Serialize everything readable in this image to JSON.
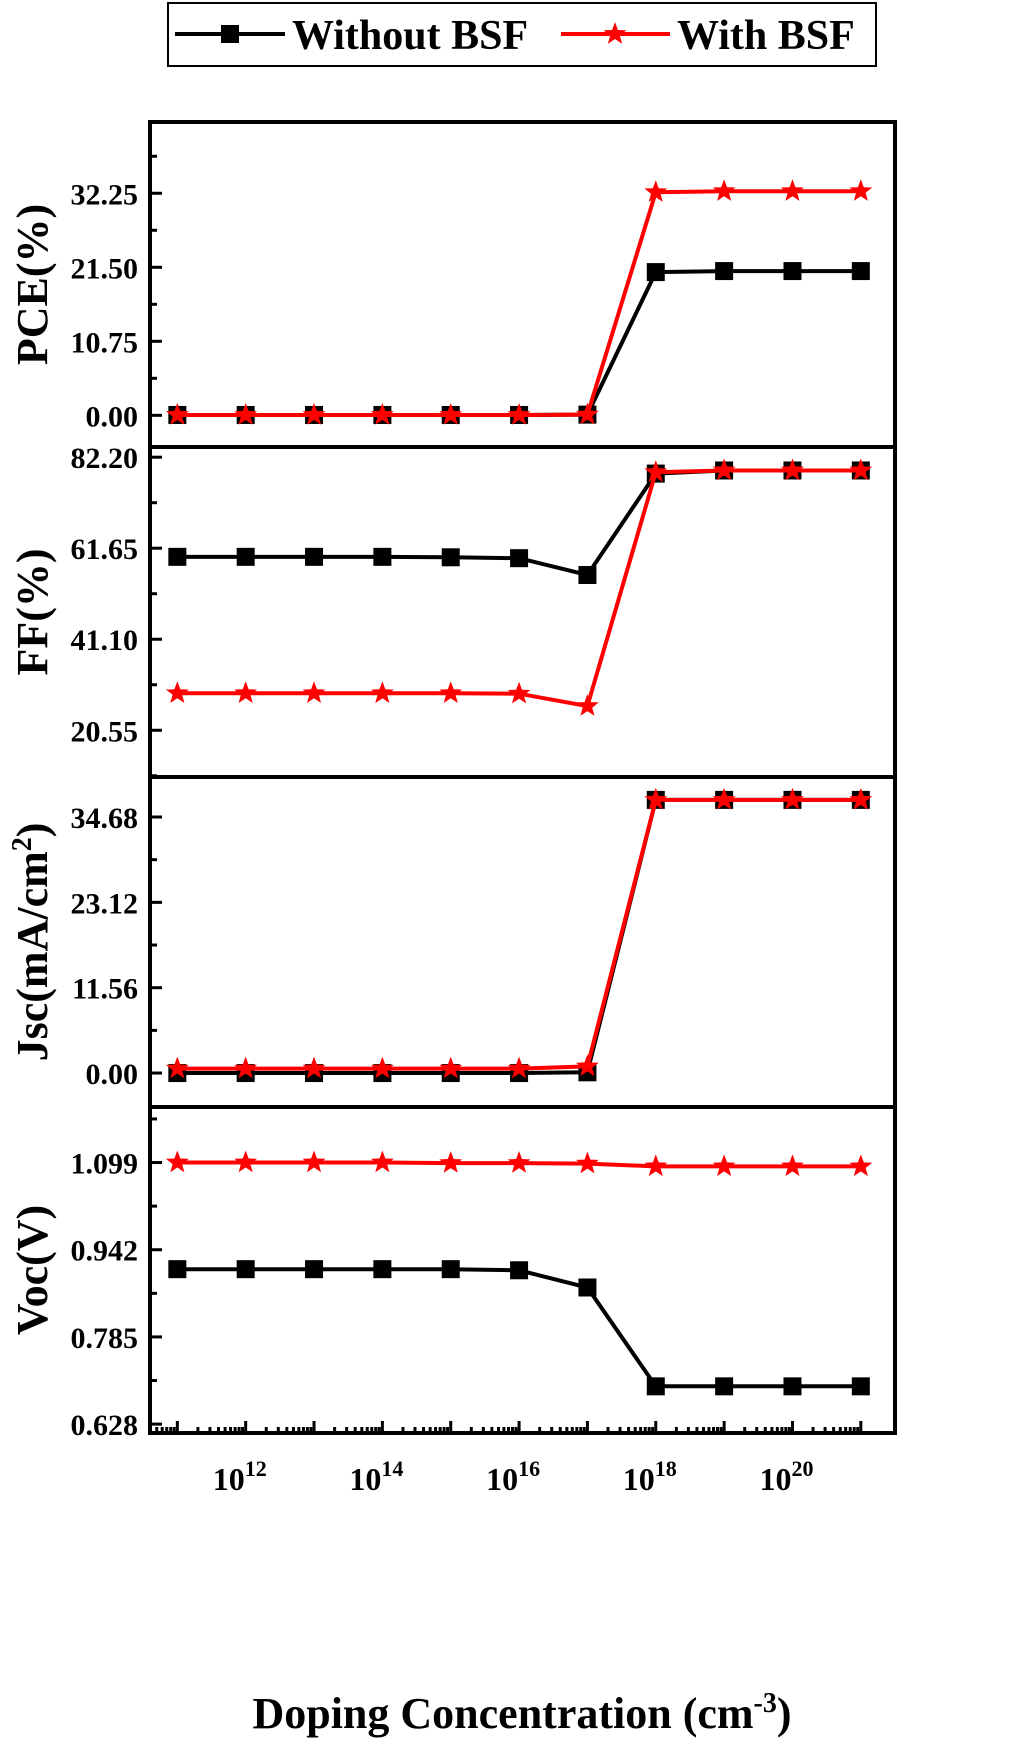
{
  "legend": {
    "entries": [
      {
        "label": "Without BSF",
        "color": "#000000",
        "marker": "square"
      },
      {
        "label": "With BSF",
        "color": "#ff0000",
        "marker": "star"
      }
    ]
  },
  "x_axis": {
    "label": "Doping Concentration (cm",
    "label_sup": "-3",
    "label_close": ")",
    "scale": "log10",
    "tick_labels": [
      {
        "base": "10",
        "exp": "12",
        "value_exp": 12
      },
      {
        "base": "10",
        "exp": "14",
        "value_exp": 14
      },
      {
        "base": "10",
        "exp": "16",
        "value_exp": 16
      },
      {
        "base": "10",
        "exp": "18",
        "value_exp": 18
      },
      {
        "base": "10",
        "exp": "20",
        "value_exp": 20
      }
    ]
  },
  "chart_data": [
    {
      "type": "line",
      "ylabel": "PCE(%)",
      "ylim": [
        -4.6,
        42.6
      ],
      "yticks": [
        "0.00",
        "10.75",
        "21.50",
        "32.25"
      ],
      "x": [
        100000000000.0,
        1000000000000.0,
        10000000000000.0,
        100000000000000.0,
        1000000000000000.0,
        1e+16,
        1e+17,
        1e+18,
        1e+19,
        1e+20,
        1e+21
      ],
      "series": [
        {
          "name": "Without BSF",
          "values": [
            0.05,
            0.05,
            0.05,
            0.05,
            0.05,
            0.05,
            0.1,
            20.8,
            20.95,
            20.95,
            20.95
          ]
        },
        {
          "name": "With BSF",
          "values": [
            0.05,
            0.05,
            0.05,
            0.05,
            0.05,
            0.05,
            0.1,
            32.4,
            32.55,
            32.55,
            32.55
          ]
        }
      ]
    },
    {
      "type": "line",
      "ylabel": "FF(%)",
      "ylim": [
        10.0,
        84.5
      ],
      "yticks": [
        "20.55",
        "41.10",
        "61.65",
        "82.20"
      ],
      "x": [
        100000000000.0,
        1000000000000.0,
        10000000000000.0,
        100000000000000.0,
        1000000000000000.0,
        1e+16,
        1e+17,
        1e+18,
        1e+19,
        1e+20,
        1e+21
      ],
      "series": [
        {
          "name": "Without BSF",
          "values": [
            59.7,
            59.7,
            59.7,
            59.7,
            59.6,
            59.4,
            55.6,
            78.5,
            79.2,
            79.2,
            79.2
          ]
        },
        {
          "name": "With BSF",
          "values": [
            28.9,
            28.9,
            28.9,
            28.9,
            28.9,
            28.8,
            26.0,
            78.8,
            79.2,
            79.2,
            79.2
          ]
        }
      ]
    },
    {
      "type": "line",
      "ylabel": "Jsc(mA/cm",
      "ylabel_sup": "2",
      "ylabel_close": ")",
      "ylim": [
        -4.6,
        40.1
      ],
      "yticks": [
        "0.00",
        "11.56",
        "23.12",
        "34.68"
      ],
      "x": [
        100000000000.0,
        1000000000000.0,
        10000000000000.0,
        100000000000000.0,
        1000000000000000.0,
        1e+16,
        1e+17,
        1e+18,
        1e+19,
        1e+20,
        1e+21
      ],
      "series": [
        {
          "name": "Without BSF",
          "values": [
            0.0,
            0.0,
            0.0,
            0.0,
            0.0,
            0.0,
            0.1,
            37.0,
            37.0,
            37.0,
            37.0
          ]
        },
        {
          "name": "With BSF",
          "values": [
            0.6,
            0.6,
            0.6,
            0.6,
            0.6,
            0.6,
            0.9,
            37.0,
            37.0,
            37.0,
            37.0
          ]
        }
      ]
    },
    {
      "type": "line",
      "ylabel": "Voc(V)",
      "ylim": [
        0.612,
        1.199
      ],
      "yticks": [
        "0.628",
        "0.785",
        "0.942",
        "1.099"
      ],
      "x": [
        100000000000.0,
        1000000000000.0,
        10000000000000.0,
        100000000000000.0,
        1000000000000000.0,
        1e+16,
        1e+17,
        1e+18,
        1e+19,
        1e+20,
        1e+21
      ],
      "series": [
        {
          "name": "Without BSF",
          "values": [
            0.907,
            0.907,
            0.907,
            0.907,
            0.907,
            0.905,
            0.874,
            0.696,
            0.696,
            0.696,
            0.696
          ]
        },
        {
          "name": "With BSF",
          "values": [
            1.099,
            1.099,
            1.099,
            1.099,
            1.098,
            1.098,
            1.097,
            1.092,
            1.092,
            1.092,
            1.092
          ]
        }
      ]
    }
  ]
}
